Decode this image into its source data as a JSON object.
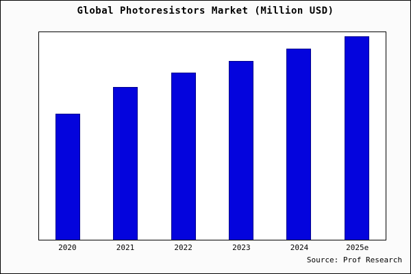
{
  "title": "Global Photoresistors Market (Million USD)",
  "source": "Source: Prof Research",
  "colors": {
    "bar_fill": "#0404dd",
    "bar_edge": "#00008b",
    "plot_bg": "#ffffff",
    "outer_bg": "#fbfbfb",
    "border": "#000000"
  },
  "chart_data": {
    "type": "bar",
    "categories": [
      "2020",
      "2021",
      "2022",
      "2023",
      "2024",
      "2025e"
    ],
    "values": [
      62,
      75,
      82,
      88,
      94,
      100
    ],
    "title": "Global Photoresistors Market (Million USD)",
    "xlabel": "",
    "ylabel": "",
    "ylim": [
      0,
      102
    ],
    "grid": false,
    "legend": false,
    "annotation": "Source: Prof Research"
  }
}
